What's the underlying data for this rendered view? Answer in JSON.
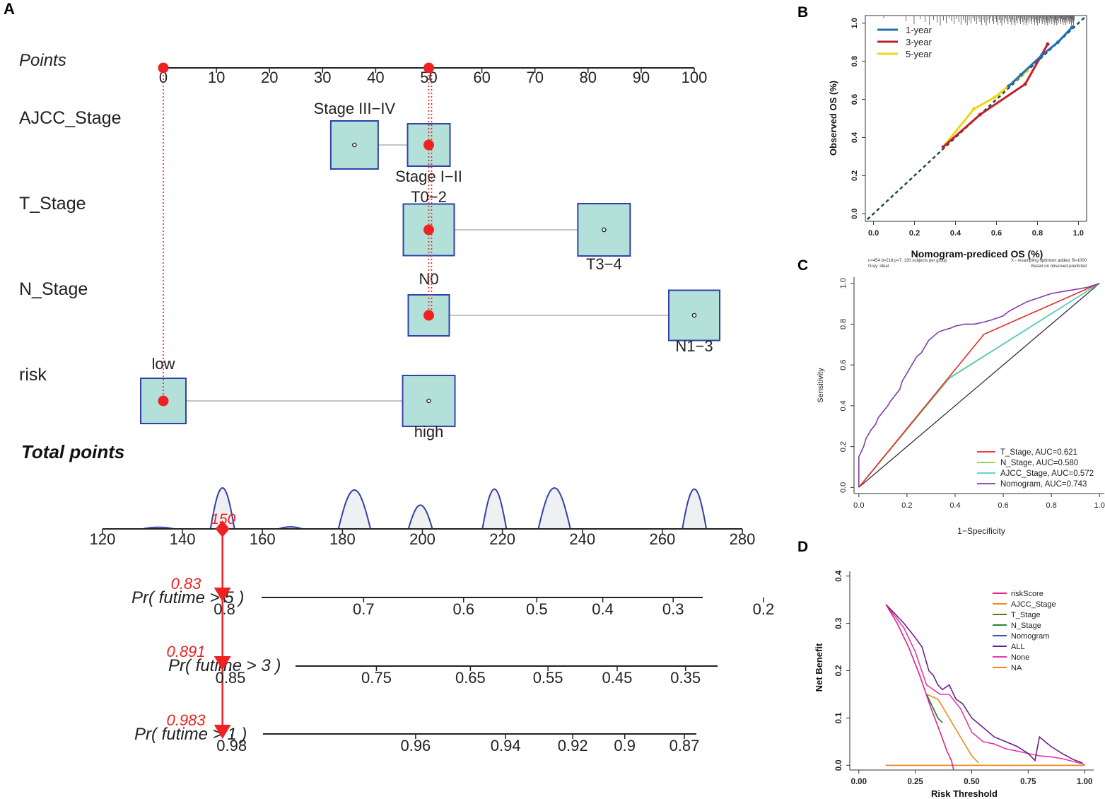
{
  "colors": {
    "box_fill": "#b3e0d8",
    "box_stroke": "#3340a8",
    "marker": "#ee2222",
    "density_fill": "#eef0f2",
    "density_stroke": "#3340a8",
    "one_year": "#1f6fb4",
    "three_year": "#c0202c",
    "five_year": "#f2d410",
    "ideal": "#1e4a4a",
    "t_stage": "#e42a2a",
    "n_stage": "#8ccf3f",
    "ajcc_stage": "#56cbd0",
    "nomogram_roc": "#7e3ea8",
    "risk_score": "#e21f8b",
    "ajcc_dca": "#f08a1a",
    "t_dca": "#5a7a16",
    "n_dca": "#1e8a3a",
    "nomogram_dca": "#3a4fb0",
    "all_dca": "#6a1f8a",
    "none_dca": "#e23aa8",
    "na_dca": "#f08a1a"
  },
  "chart_data": [
    {
      "panel": "A",
      "type": "nomogram",
      "points_axis": {
        "label": "Points",
        "ticks": [
          0,
          10,
          20,
          30,
          40,
          50,
          60,
          70,
          80,
          90,
          100
        ]
      },
      "variables": [
        {
          "name": "AJCC_Stage",
          "levels": [
            {
              "label": "Stage III−IV",
              "points": 36,
              "marked": false
            },
            {
              "label": "Stage I−II",
              "points": 50,
              "marked": true
            }
          ]
        },
        {
          "name": "T_Stage",
          "levels": [
            {
              "label": "T0−2",
              "points": 50,
              "marked": true
            },
            {
              "label": "T3−4",
              "points": 83,
              "marked": false
            }
          ]
        },
        {
          "name": "N_Stage",
          "levels": [
            {
              "label": "N0",
              "points": 50,
              "marked": true
            },
            {
              "label": "N1−3",
              "points": 100,
              "marked": false
            }
          ]
        },
        {
          "name": "risk",
          "levels": [
            {
              "label": "low",
              "points": 0,
              "marked": true
            },
            {
              "label": "high",
              "points": 50,
              "marked": false
            }
          ]
        }
      ],
      "total_points": {
        "label": "Total points",
        "ticks": [
          120,
          140,
          160,
          180,
          200,
          220,
          240,
          260,
          280
        ],
        "value": 150,
        "value_label": "150",
        "density_peaks": [
          {
            "center": 134,
            "width": 4,
            "height": 0.04
          },
          {
            "center": 150,
            "width": 3,
            "height": 1.0
          },
          {
            "center": 167,
            "width": 3,
            "height": 0.05
          },
          {
            "center": 183,
            "width": 4,
            "height": 0.95
          },
          {
            "center": 199.5,
            "width": 3,
            "height": 0.58
          },
          {
            "center": 218,
            "width": 3,
            "height": 0.97
          },
          {
            "center": 233,
            "width": 4,
            "height": 1.0
          },
          {
            "center": 268,
            "width": 3,
            "height": 0.97
          }
        ]
      },
      "survival_axes": [
        {
          "label": "Pr( futime > 5 )",
          "value_label": "0.83",
          "ticks": [
            "0.8",
            "0.7",
            "0.6",
            "0.5",
            "0.4",
            "0.3",
            "0.2"
          ],
          "tick_points": [
            150.5,
            185.3,
            210.3,
            228.6,
            245.1,
            262.7,
            285.3
          ]
        },
        {
          "label": "Pr( futime > 3 )",
          "value_label": "0.891",
          "ticks": [
            "0.85",
            "0.75",
            "0.65",
            "0.55",
            "0.45",
            "0.35"
          ],
          "tick_points": [
            152,
            188.5,
            212,
            231.4,
            248.7,
            265.8
          ]
        },
        {
          "label": "Pr( futime > 1 )",
          "value_label": "0.983",
          "ticks": [
            "0.98",
            "0.96",
            "0.94",
            "0.92",
            "0.9",
            "0.87"
          ],
          "tick_points": [
            152.3,
            198.3,
            220.8,
            237.6,
            250.6,
            265.5
          ]
        }
      ]
    },
    {
      "panel": "B",
      "type": "line",
      "title": "",
      "xlabel": "Nomogram-prediced OS (%)",
      "ylabel": "Observed OS (%)",
      "xlim": [
        -0.04,
        1.04
      ],
      "ylim": [
        -0.04,
        1.04
      ],
      "xticks": [
        0.0,
        0.2,
        0.4,
        0.6,
        0.8,
        1.0
      ],
      "yticks": [
        0.0,
        0.2,
        0.4,
        0.6,
        0.8,
        1.0
      ],
      "xtick_labels": [
        "0.0",
        "0.2",
        "0.4",
        "0.6",
        "0.8",
        "1.0"
      ],
      "ytick_labels": [
        "0.0",
        "0.2",
        "0.4",
        "0.6",
        "0.8",
        "1.0"
      ],
      "series": [
        {
          "name": "1-year",
          "color_key": "one_year",
          "x": [
            0.66,
            0.72,
            0.82,
            0.9,
            0.97
          ],
          "y": [
            0.67,
            0.73,
            0.83,
            0.9,
            0.98
          ]
        },
        {
          "name": "3-year",
          "color_key": "three_year",
          "x": [
            0.34,
            0.52,
            0.74,
            0.85
          ],
          "y": [
            0.35,
            0.52,
            0.68,
            0.89
          ]
        },
        {
          "name": "5-year",
          "color_key": "five_year",
          "x": [
            0.34,
            0.49,
            0.59,
            0.75
          ],
          "y": [
            0.35,
            0.55,
            0.61,
            0.75
          ]
        }
      ],
      "ideal_line": {
        "x": [
          -0.03,
          1.03
        ],
        "y": [
          -0.03,
          1.03
        ]
      },
      "footnote_left": [
        "n=454 d=218 p=7, 130 subjects per group",
        "Gray: ideal"
      ],
      "footnote_right": [
        "X - resampling optimism added, B=1000",
        "Based on observed-predicted"
      ]
    },
    {
      "panel": "C",
      "type": "line",
      "title": "",
      "xlabel": "1−Specificity",
      "ylabel": "Sensitivity",
      "xlim": [
        -0.02,
        1.02
      ],
      "ylim": [
        -0.03,
        1.03
      ],
      "xticks": [
        0.0,
        0.2,
        0.4,
        0.6,
        0.8,
        1.0
      ],
      "yticks": [
        0.0,
        0.2,
        0.4,
        0.6,
        0.8,
        1.0
      ],
      "xtick_labels": [
        "0.0",
        "0.2",
        "0.4",
        "0.6",
        "0.8",
        "1.0"
      ],
      "ytick_labels": [
        "0.0",
        "0.2",
        "0.4",
        "0.6",
        "0.8",
        "1.0"
      ],
      "series": [
        {
          "name": "T_Stage, AUC=0.621",
          "color_key": "t_stage",
          "x": [
            0,
            0.52,
            1.0
          ],
          "y": [
            0,
            0.75,
            1.0
          ]
        },
        {
          "name": "N_Stage, AUC=0.580",
          "color_key": "n_stage",
          "x": [
            0,
            0.38,
            1.0
          ],
          "y": [
            0,
            0.54,
            1.0
          ]
        },
        {
          "name": "AJCC_Stage, AUC=0.572",
          "color_key": "ajcc_stage",
          "x": [
            0,
            0.37,
            1.0
          ],
          "y": [
            0,
            0.53,
            1.0
          ]
        },
        {
          "name": "Nomogram, AUC=0.743",
          "color_key": "nomogram_roc",
          "x": [
            0,
            0.0,
            0.02,
            0.03,
            0.05,
            0.07,
            0.08,
            0.1,
            0.12,
            0.13,
            0.15,
            0.17,
            0.18,
            0.2,
            0.22,
            0.24,
            0.26,
            0.28,
            0.29,
            0.31,
            0.33,
            0.35,
            0.38,
            0.4,
            0.44,
            0.48,
            0.52,
            0.55,
            0.6,
            0.62,
            0.65,
            0.7,
            0.75,
            0.8,
            0.85,
            0.9,
            0.95,
            1.0
          ],
          "y": [
            0,
            0.15,
            0.2,
            0.24,
            0.28,
            0.31,
            0.34,
            0.37,
            0.4,
            0.42,
            0.45,
            0.48,
            0.52,
            0.56,
            0.6,
            0.64,
            0.66,
            0.7,
            0.72,
            0.74,
            0.76,
            0.77,
            0.78,
            0.79,
            0.8,
            0.8,
            0.81,
            0.82,
            0.84,
            0.86,
            0.88,
            0.91,
            0.93,
            0.95,
            0.96,
            0.97,
            0.98,
            1.0
          ]
        },
        {
          "name": "reference",
          "color_key": "reference",
          "x": [
            0,
            1
          ],
          "y": [
            0,
            1
          ]
        }
      ]
    },
    {
      "panel": "D",
      "type": "line",
      "title": "",
      "xlabel": "Risk Threshold",
      "ylabel": "Net Benefit",
      "xlim": [
        -0.04,
        1.04
      ],
      "ylim": [
        -0.01,
        0.41
      ],
      "xticks": [
        0.0,
        0.25,
        0.5,
        0.75,
        1.0
      ],
      "yticks": [
        0.0,
        0.1,
        0.2,
        0.3,
        0.4
      ],
      "xtick_labels": [
        "0.00",
        "0.25",
        "0.50",
        "0.75",
        "1.00"
      ],
      "ytick_labels": [
        "0.0",
        "0.1",
        "0.2",
        "0.3",
        "0.4"
      ],
      "series": [
        {
          "name": "riskScore",
          "color_key": "risk_score",
          "x": [
            0.12,
            0.17,
            0.22,
            0.27,
            0.32,
            0.36,
            0.39,
            0.41,
            0.42
          ],
          "y": [
            0.34,
            0.3,
            0.25,
            0.19,
            0.12,
            0.07,
            0.03,
            0.01,
            -0.01
          ]
        },
        {
          "name": "AJCC_Stage",
          "color_key": "ajcc_dca",
          "x": [
            0.3,
            0.35,
            0.4,
            0.45,
            0.5,
            0.53
          ],
          "y": [
            0.15,
            0.14,
            0.1,
            0.06,
            0.02,
            0.005
          ]
        },
        {
          "name": "T_Stage",
          "color_key": "t_dca",
          "x": [
            0.3,
            0.35,
            0.37
          ],
          "y": [
            0.15,
            0.1,
            0.09
          ]
        },
        {
          "name": "N_Stage",
          "color_key": "n_dca",
          "x": [
            0.3,
            0.35,
            0.37
          ],
          "y": [
            0.15,
            0.1,
            0.09
          ]
        },
        {
          "name": "Nomogram",
          "color_key": "nomogram_dca",
          "x": [
            0.12,
            1.0
          ],
          "y": [
            0.0,
            0.0
          ]
        },
        {
          "name": "ALL",
          "color_key": "all_dca",
          "x": [
            0.12,
            0.2,
            0.25,
            0.28,
            0.31,
            0.33,
            0.35,
            0.37,
            0.4,
            0.43,
            0.46,
            0.5,
            0.55,
            0.6,
            0.65,
            0.7,
            0.75,
            0.78,
            0.8,
            0.85,
            0.9,
            0.95,
            0.99
          ],
          "y": [
            0.34,
            0.3,
            0.27,
            0.25,
            0.2,
            0.19,
            0.17,
            0.16,
            0.17,
            0.14,
            0.13,
            0.1,
            0.08,
            0.06,
            0.05,
            0.04,
            0.025,
            0.01,
            0.06,
            0.04,
            0.025,
            0.012,
            0.005
          ]
        },
        {
          "name": "None",
          "color_key": "none_dca",
          "x": [
            0.12,
            0.2,
            0.25,
            0.3,
            0.33,
            0.36,
            0.4,
            0.45,
            0.5,
            0.55,
            0.6,
            0.65,
            0.7,
            0.75,
            0.8,
            0.85,
            0.9,
            0.95,
            1.0
          ],
          "y": [
            0.34,
            0.29,
            0.24,
            0.17,
            0.16,
            0.15,
            0.15,
            0.12,
            0.07,
            0.05,
            0.045,
            0.035,
            0.03,
            0.025,
            0.02,
            0.018,
            0.014,
            0.008,
            0.002
          ]
        },
        {
          "name": "NA",
          "color_key": "na_dca",
          "x": [
            0.12,
            1.0
          ],
          "y": [
            0.0,
            0.0
          ]
        }
      ]
    }
  ],
  "labels": {
    "panel_a": "A",
    "panel_b": "B",
    "panel_c": "C",
    "panel_d": "D",
    "b_legend": [
      "1-year",
      "3-year",
      "5-year"
    ],
    "c_legend": [
      "T_Stage, AUC=0.621",
      "N_Stage, AUC=0.580",
      "AJCC_Stage, AUC=0.572",
      "Nomogram, AUC=0.743"
    ],
    "d_legend": [
      "riskScore",
      "AJCC_Stage",
      "T_Stage",
      "N_Stage",
      "Nomogram",
      "ALL",
      "None",
      "NA"
    ]
  }
}
